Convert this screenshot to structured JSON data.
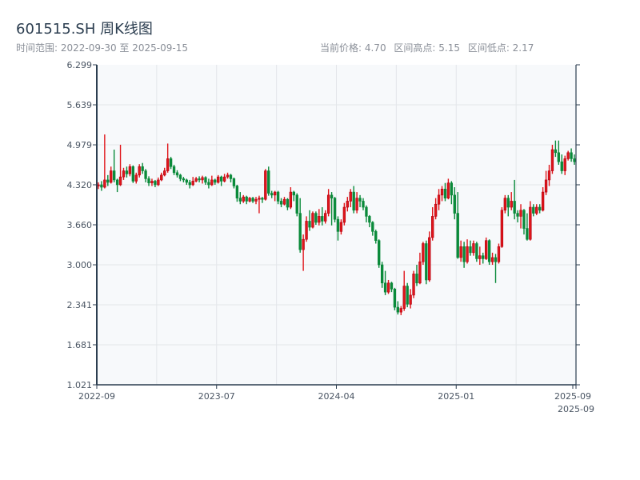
{
  "header": {
    "title": "601515.SH 周K线图",
    "range_text": "时间范围: 2022-09-30 至 2025-09-15",
    "current_price": "当前价格: 4.70",
    "range_high": "区间高点: 5.15",
    "range_low": "区间低点: 2.17"
  },
  "colors": {
    "up": "#e0161b",
    "up_border": "#b00010",
    "down": "#0a8a3a",
    "axis": "#2c3e50",
    "grid": "#e3e6ea",
    "plot_bg": "#f7f9fb"
  },
  "chart_data": {
    "type": "candlestick",
    "title": "601515.SH 周K线图",
    "ylim": [
      1.021,
      6.299
    ],
    "y_ticks": [
      "1.021",
      "1.681",
      "2.341",
      "3.000",
      "3.660",
      "4.320",
      "4.979",
      "5.639",
      "6.299"
    ],
    "x_ticks": [
      "2022-09",
      "2023-07",
      "2024-04",
      "2025-01",
      "2025-09",
      "2025-09"
    ],
    "grid": true,
    "ohlc_format": [
      "open",
      "close",
      "low",
      "high"
    ],
    "ohlc": [
      [
        4.3,
        4.32,
        4.25,
        4.36
      ],
      [
        4.32,
        4.28,
        4.22,
        4.38
      ],
      [
        4.28,
        4.4,
        4.26,
        5.15
      ],
      [
        4.4,
        4.36,
        4.3,
        4.48
      ],
      [
        4.36,
        4.55,
        4.34,
        4.62
      ],
      [
        4.55,
        4.4,
        4.36,
        4.9
      ],
      [
        4.4,
        4.32,
        4.2,
        4.42
      ],
      [
        4.32,
        4.45,
        4.3,
        4.98
      ],
      [
        4.45,
        4.55,
        4.4,
        4.6
      ],
      [
        4.55,
        4.5,
        4.44,
        4.62
      ],
      [
        4.5,
        4.62,
        4.46,
        4.66
      ],
      [
        4.62,
        4.38,
        4.35,
        4.64
      ],
      [
        4.38,
        4.48,
        4.34,
        4.52
      ],
      [
        4.48,
        4.62,
        4.44,
        4.66
      ],
      [
        4.62,
        4.55,
        4.5,
        4.68
      ],
      [
        4.55,
        4.42,
        4.36,
        4.58
      ],
      [
        4.42,
        4.35,
        4.3,
        4.46
      ],
      [
        4.35,
        4.38,
        4.3,
        4.42
      ],
      [
        4.38,
        4.32,
        4.28,
        4.4
      ],
      [
        4.32,
        4.4,
        4.3,
        4.44
      ],
      [
        4.4,
        4.48,
        4.38,
        4.52
      ],
      [
        4.48,
        4.55,
        4.46,
        4.6
      ],
      [
        4.55,
        4.75,
        4.52,
        5.0
      ],
      [
        4.75,
        4.62,
        4.58,
        4.78
      ],
      [
        4.62,
        4.52,
        4.48,
        4.65
      ],
      [
        4.52,
        4.48,
        4.44,
        4.56
      ],
      [
        4.48,
        4.42,
        4.38,
        4.5
      ],
      [
        4.42,
        4.4,
        4.36,
        4.45
      ],
      [
        4.4,
        4.36,
        4.32,
        4.42
      ],
      [
        4.36,
        4.32,
        4.26,
        4.4
      ],
      [
        4.32,
        4.38,
        4.3,
        4.45
      ],
      [
        4.38,
        4.42,
        4.36,
        4.45
      ],
      [
        4.42,
        4.4,
        4.36,
        4.46
      ],
      [
        4.4,
        4.44,
        4.34,
        4.47
      ],
      [
        4.44,
        4.36,
        4.32,
        4.46
      ],
      [
        4.36,
        4.32,
        4.26,
        4.42
      ],
      [
        4.32,
        4.4,
        4.3,
        4.47
      ],
      [
        4.4,
        4.36,
        4.32,
        4.42
      ],
      [
        4.36,
        4.45,
        4.34,
        4.48
      ],
      [
        4.45,
        4.38,
        4.3,
        4.47
      ],
      [
        4.38,
        4.45,
        4.36,
        4.5
      ],
      [
        4.45,
        4.48,
        4.42,
        4.52
      ],
      [
        4.48,
        4.42,
        4.36,
        4.5
      ],
      [
        4.42,
        4.3,
        4.26,
        4.44
      ],
      [
        4.3,
        4.1,
        4.04,
        4.32
      ],
      [
        4.1,
        4.05,
        4.0,
        4.2
      ],
      [
        4.05,
        4.12,
        4.02,
        4.15
      ],
      [
        4.12,
        4.05,
        4.0,
        4.14
      ],
      [
        4.05,
        4.1,
        4.03,
        4.12
      ],
      [
        4.1,
        4.05,
        4.02,
        4.12
      ],
      [
        4.05,
        4.08,
        4.0,
        4.12
      ],
      [
        4.08,
        4.1,
        3.85,
        4.14
      ],
      [
        4.1,
        4.08,
        4.02,
        4.12
      ],
      [
        4.08,
        4.55,
        4.06,
        4.58
      ],
      [
        4.55,
        4.18,
        4.14,
        4.62
      ],
      [
        4.18,
        4.15,
        4.1,
        4.22
      ],
      [
        4.15,
        4.2,
        4.05,
        4.22
      ],
      [
        4.2,
        4.05,
        4.0,
        4.22
      ],
      [
        4.05,
        4.0,
        3.95,
        4.1
      ],
      [
        4.0,
        4.08,
        3.98,
        4.12
      ],
      [
        4.08,
        3.95,
        3.9,
        4.1
      ],
      [
        3.95,
        4.2,
        3.92,
        4.28
      ],
      [
        4.2,
        4.15,
        4.05,
        4.22
      ],
      [
        4.15,
        3.85,
        3.8,
        4.18
      ],
      [
        3.85,
        3.25,
        3.2,
        4.1
      ],
      [
        3.25,
        3.42,
        2.9,
        3.5
      ],
      [
        3.42,
        3.72,
        3.38,
        3.8
      ],
      [
        3.72,
        3.62,
        3.56,
        3.9
      ],
      [
        3.62,
        3.85,
        3.6,
        3.88
      ],
      [
        3.85,
        3.7,
        3.66,
        3.88
      ],
      [
        3.7,
        3.8,
        3.65,
        3.92
      ],
      [
        3.8,
        3.72,
        3.65,
        3.95
      ],
      [
        3.72,
        3.85,
        3.68,
        3.9
      ],
      [
        3.85,
        4.15,
        3.8,
        4.25
      ],
      [
        4.15,
        4.1,
        3.65,
        4.2
      ],
      [
        4.1,
        3.75,
        3.7,
        4.12
      ],
      [
        3.75,
        3.55,
        3.4,
        3.8
      ],
      [
        3.55,
        3.7,
        3.5,
        3.75
      ],
      [
        3.7,
        3.95,
        3.65,
        4.02
      ],
      [
        3.95,
        4.05,
        3.88,
        4.12
      ],
      [
        4.05,
        4.2,
        3.95,
        4.25
      ],
      [
        4.2,
        3.9,
        3.85,
        4.3
      ],
      [
        3.9,
        4.1,
        3.85,
        4.2
      ],
      [
        4.1,
        4.05,
        3.95,
        4.15
      ],
      [
        4.05,
        3.95,
        3.9,
        4.1
      ],
      [
        3.95,
        3.8,
        3.7,
        3.98
      ],
      [
        3.8,
        3.7,
        3.62,
        3.82
      ],
      [
        3.7,
        3.55,
        3.48,
        3.72
      ],
      [
        3.55,
        3.4,
        3.35,
        3.58
      ],
      [
        3.4,
        3.0,
        2.95,
        3.42
      ],
      [
        3.0,
        2.7,
        2.62,
        3.05
      ],
      [
        2.7,
        2.55,
        2.5,
        2.9
      ],
      [
        2.55,
        2.7,
        2.52,
        2.75
      ],
      [
        2.7,
        2.6,
        2.55,
        2.72
      ],
      [
        2.6,
        2.3,
        2.25,
        2.62
      ],
      [
        2.3,
        2.22,
        2.18,
        2.4
      ],
      [
        2.22,
        2.28,
        2.17,
        2.32
      ],
      [
        2.28,
        2.65,
        2.24,
        2.9
      ],
      [
        2.65,
        2.35,
        2.3,
        2.7
      ],
      [
        2.35,
        2.5,
        2.28,
        2.6
      ],
      [
        2.5,
        2.85,
        2.45,
        2.9
      ],
      [
        2.85,
        2.7,
        2.65,
        3.0
      ],
      [
        2.7,
        3.05,
        2.68,
        3.2
      ],
      [
        3.05,
        3.35,
        3.0,
        3.38
      ],
      [
        3.35,
        2.75,
        2.68,
        3.4
      ],
      [
        2.75,
        3.45,
        2.72,
        3.55
      ],
      [
        3.45,
        3.8,
        3.4,
        3.95
      ],
      [
        3.8,
        4.0,
        3.75,
        4.1
      ],
      [
        4.0,
        4.15,
        3.9,
        4.25
      ],
      [
        4.15,
        4.25,
        4.05,
        4.3
      ],
      [
        4.25,
        4.1,
        4.05,
        4.35
      ],
      [
        4.1,
        4.35,
        4.08,
        4.42
      ],
      [
        4.35,
        4.15,
        4.0,
        4.38
      ],
      [
        4.15,
        3.85,
        3.75,
        4.28
      ],
      [
        3.85,
        3.12,
        3.1,
        4.2
      ],
      [
        3.12,
        3.3,
        3.05,
        3.4
      ],
      [
        3.3,
        3.05,
        2.95,
        3.38
      ],
      [
        3.05,
        3.3,
        3.02,
        3.42
      ],
      [
        3.3,
        3.2,
        3.15,
        3.4
      ],
      [
        3.2,
        3.35,
        3.15,
        3.4
      ],
      [
        3.35,
        3.1,
        3.05,
        3.38
      ],
      [
        3.1,
        3.15,
        3.0,
        3.3
      ],
      [
        3.15,
        3.1,
        3.02,
        3.2
      ],
      [
        3.1,
        3.4,
        3.08,
        3.45
      ],
      [
        3.4,
        3.05,
        3.0,
        3.42
      ],
      [
        3.05,
        3.12,
        3.0,
        3.2
      ],
      [
        3.12,
        3.05,
        2.7,
        3.18
      ],
      [
        3.05,
        3.3,
        3.02,
        3.35
      ],
      [
        3.3,
        3.9,
        3.28,
        3.95
      ],
      [
        3.9,
        4.1,
        3.85,
        4.15
      ],
      [
        4.1,
        3.95,
        3.8,
        4.15
      ],
      [
        3.95,
        4.05,
        3.9,
        4.2
      ],
      [
        4.05,
        3.85,
        3.75,
        4.4
      ],
      [
        3.85,
        3.8,
        3.7,
        3.9
      ],
      [
        3.8,
        3.9,
        3.6,
        4.0
      ],
      [
        3.9,
        3.6,
        3.5,
        3.92
      ],
      [
        3.6,
        3.42,
        3.4,
        3.85
      ],
      [
        3.42,
        3.95,
        3.4,
        4.05
      ],
      [
        3.95,
        3.85,
        3.8,
        4.0
      ],
      [
        3.85,
        3.95,
        3.82,
        4.0
      ],
      [
        3.95,
        3.9,
        3.85,
        4.0
      ],
      [
        3.9,
        4.2,
        3.88,
        4.28
      ],
      [
        4.2,
        4.4,
        4.15,
        4.55
      ],
      [
        4.4,
        4.55,
        4.3,
        4.65
      ],
      [
        4.55,
        4.9,
        4.5,
        4.98
      ],
      [
        4.9,
        4.85,
        4.78,
        5.05
      ],
      [
        4.85,
        4.7,
        4.65,
        5.05
      ],
      [
        4.7,
        4.55,
        4.5,
        4.82
      ],
      [
        4.55,
        4.75,
        4.48,
        4.8
      ],
      [
        4.75,
        4.85,
        4.72,
        4.88
      ],
      [
        4.85,
        4.75,
        4.7,
        4.92
      ],
      [
        4.75,
        4.7,
        4.65,
        4.82
      ]
    ]
  }
}
